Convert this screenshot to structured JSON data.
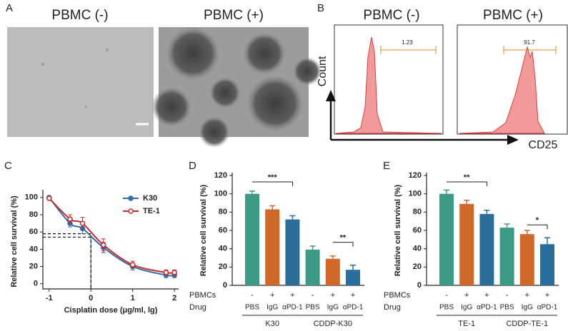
{
  "panel_labels": [
    "A",
    "B",
    "C",
    "D",
    "E"
  ],
  "panel_a": {
    "images": [
      {
        "title": "PBMC (-)"
      },
      {
        "title": "PBMC (+)"
      }
    ]
  },
  "panel_b": {
    "histograms": [
      {
        "title": "PBMC (-)",
        "gate_label": "1.23"
      },
      {
        "title": "PBMC (+)",
        "gate_label": "91.7"
      }
    ],
    "xlabel": "CD25",
    "ylabel": "Count"
  },
  "chart_data": [
    {
      "type": "line",
      "xlabel": "Cisplatin dose (μg/ml, lg)",
      "ylabel": "Relative cell survival (%)",
      "x": [
        -1,
        -0.5,
        -0.2,
        0.3,
        1,
        1.8,
        2
      ],
      "xlim": [
        -1.15,
        2.1
      ],
      "xticks": [
        -1,
        0,
        1,
        2
      ],
      "ylim": [
        -6,
        104
      ],
      "yticks": [
        0,
        20,
        40,
        60,
        80,
        100
      ],
      "series": [
        {
          "name": "K30",
          "color": "#2f6eaa",
          "marker": "filled",
          "values": [
            100,
            70,
            64,
            42,
            20,
            10,
            10
          ],
          "errors": [
            1,
            4,
            6,
            6,
            4,
            3,
            3
          ]
        },
        {
          "name": "TE-1",
          "color": "#c62a2a",
          "marker": "open",
          "values": [
            99,
            75,
            70,
            45,
            22,
            13,
            13
          ],
          "errors": [
            1,
            5,
            7,
            7,
            4,
            3,
            3
          ]
        }
      ],
      "reference_lines": [
        {
          "x": 0,
          "y": 58
        },
        {
          "x": 0,
          "y": 54
        }
      ]
    },
    {
      "type": "bar",
      "ylabel": "Relative cell survival (%)",
      "ylim": [
        0,
        120
      ],
      "yticks": [
        0,
        20,
        40,
        60,
        80,
        100,
        120
      ],
      "row_labels": [
        "PBMCs",
        "Drug"
      ],
      "pbmcs": [
        "-",
        "+",
        "+",
        "-",
        "+",
        "+"
      ],
      "categories": [
        "PBS",
        "IgG",
        "αPD-1",
        "PBS",
        "IgG",
        "αPD-1"
      ],
      "colors": [
        "#3a9a83",
        "#d0682a",
        "#2c6e9b",
        "#3a9a83",
        "#d0682a",
        "#2c6e9b"
      ],
      "values": [
        100,
        83,
        72,
        39,
        29,
        17
      ],
      "errors": [
        3,
        4,
        4,
        4,
        3,
        5
      ],
      "groups": [
        {
          "name": "K30",
          "span": [
            0,
            2
          ]
        },
        {
          "name": "CDDP-K30",
          "span": [
            3,
            5
          ]
        }
      ],
      "significance": [
        {
          "text": "***",
          "between": [
            0,
            2
          ],
          "y": 113
        },
        {
          "text": "**",
          "between": [
            4,
            5
          ],
          "y": 47
        }
      ]
    },
    {
      "type": "bar",
      "ylabel": "Relative cell survival (%)",
      "ylim": [
        0,
        120
      ],
      "yticks": [
        0,
        20,
        40,
        60,
        80,
        100,
        120
      ],
      "row_labels": [
        "PBMCs",
        "Drug"
      ],
      "pbmcs": [
        "-",
        "+",
        "+",
        "-",
        "+",
        "+"
      ],
      "categories": [
        "PBS",
        "IgG",
        "αPD-1",
        "PBS",
        "IgG",
        "αPD-1"
      ],
      "colors": [
        "#3a9a83",
        "#d0682a",
        "#2c6e9b",
        "#3a9a83",
        "#d0682a",
        "#2c6e9b"
      ],
      "values": [
        100,
        89,
        78,
        63,
        56,
        45
      ],
      "errors": [
        4,
        4,
        4,
        4,
        4,
        7
      ],
      "groups": [
        {
          "name": "TE-1",
          "span": [
            0,
            2
          ]
        },
        {
          "name": "CDDP-TE-1",
          "span": [
            3,
            5
          ]
        }
      ],
      "significance": [
        {
          "text": "**",
          "between": [
            0,
            2
          ],
          "y": 113
        },
        {
          "text": "*",
          "between": [
            4,
            5
          ],
          "y": 66
        }
      ]
    }
  ]
}
